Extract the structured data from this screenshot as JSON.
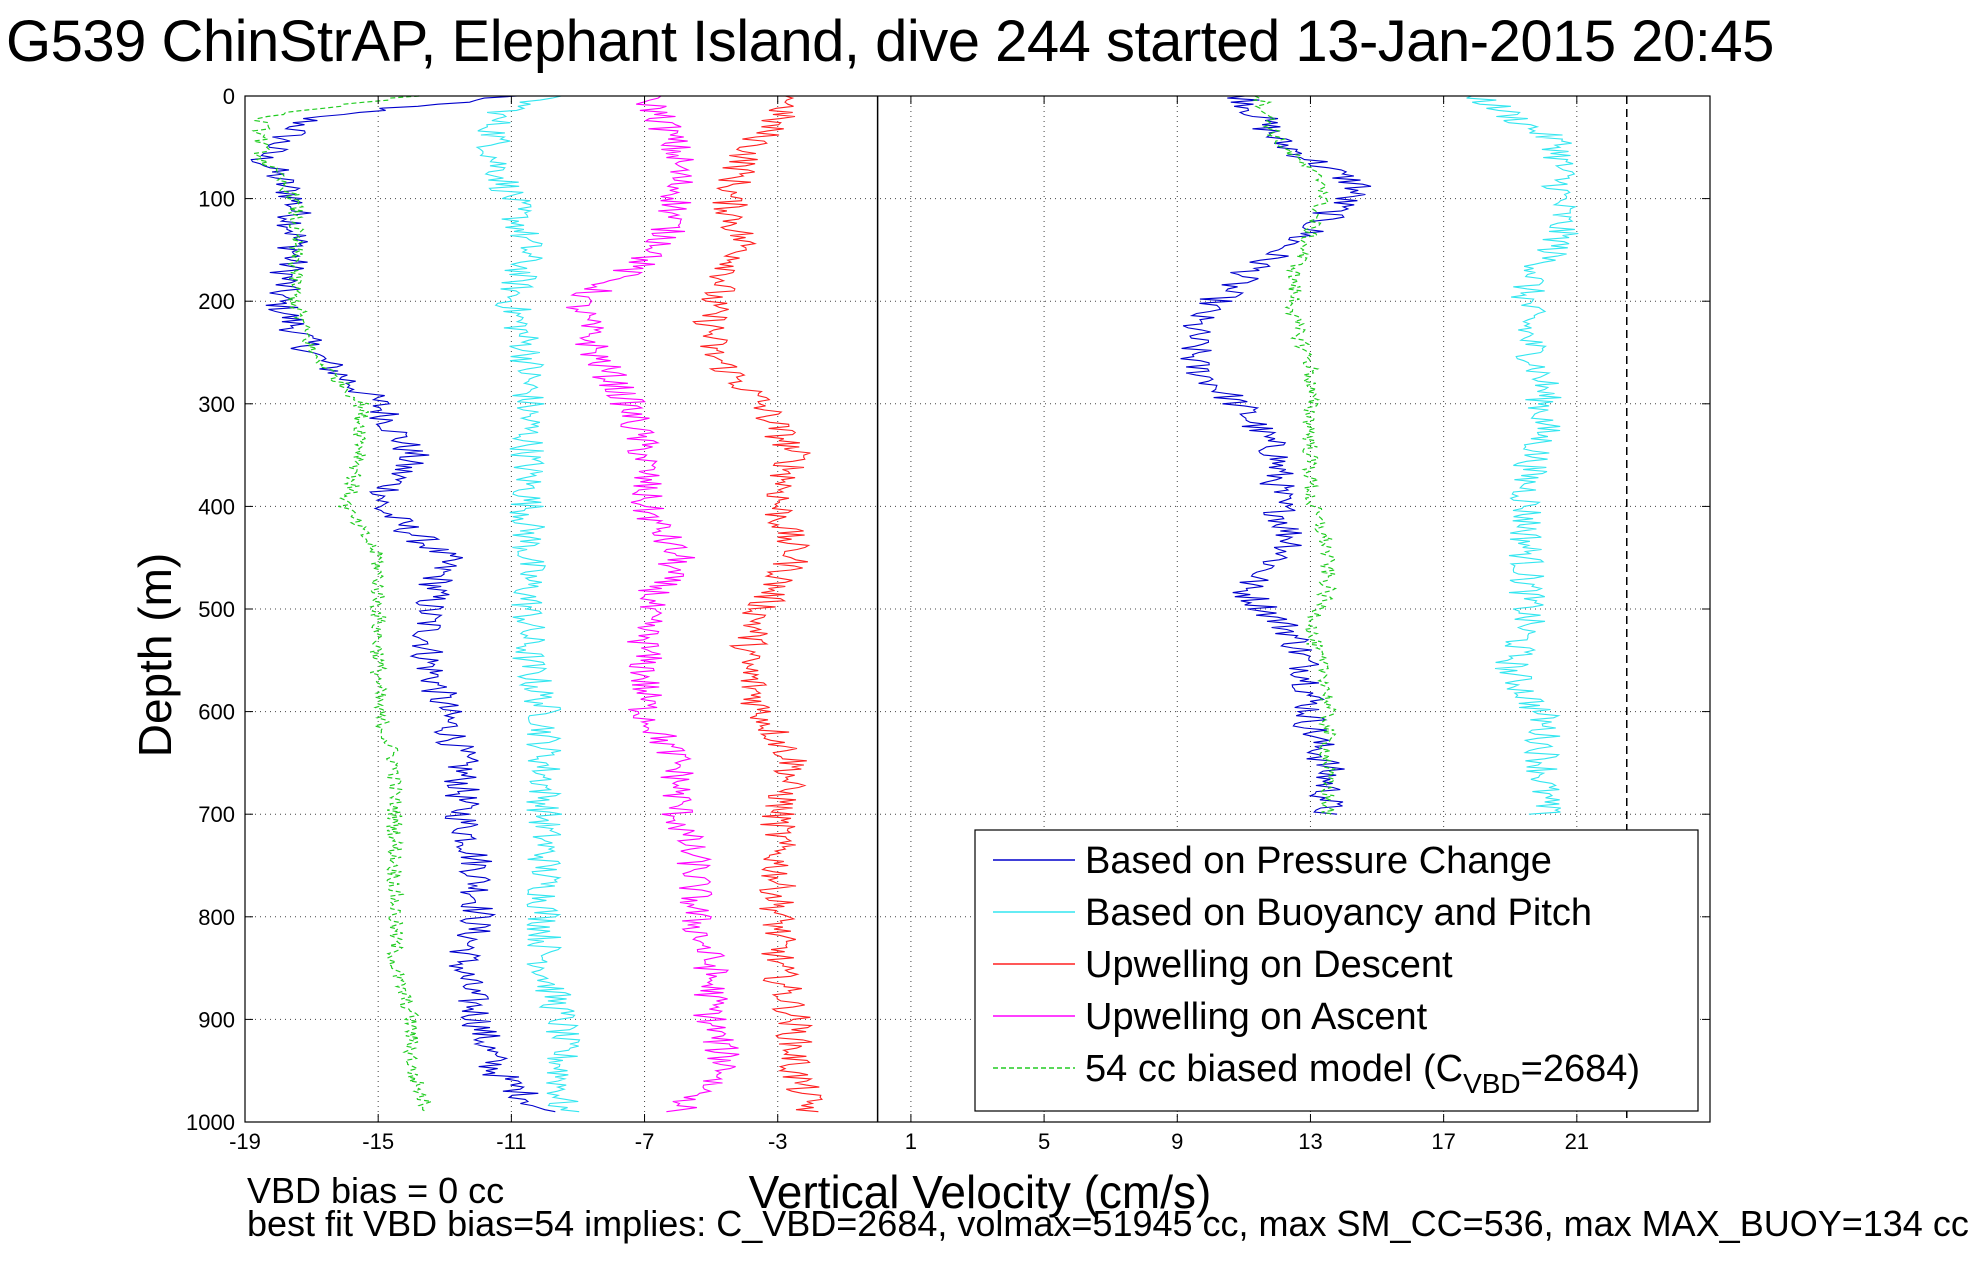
{
  "header": {
    "title": "G539 ChinStrAP, Elephant Island, dive 244 started 13-Jan-2015 20:45"
  },
  "footer": {
    "line1": "VBD bias = 0 cc",
    "line2": "best fit VBD bias=54 implies: C_VBD=2684, volmax=51945 cc, max SM_CC=536, max MAX_BUOY=134 cc"
  },
  "chart_data": {
    "type": "line",
    "title": "G539 ChinStrAP, Elephant Island, dive 244 started 13-Jan-2015 20:45",
    "xlabel": "Vertical Velocity (cm/s)",
    "ylabel": "Depth (m)",
    "xlim": [
      -19,
      25
    ],
    "ylim": [
      0,
      1000
    ],
    "y_reversed": true,
    "grid": true,
    "grid_style": "dotted",
    "legend_position": "bottom-right",
    "xticks": [
      -19,
      -15,
      -11,
      -7,
      -3,
      1,
      5,
      9,
      13,
      17,
      21
    ],
    "yticks": [
      0,
      100,
      200,
      300,
      400,
      500,
      600,
      700,
      800,
      900,
      1000
    ],
    "reference_lines": [
      {
        "x": 0,
        "style": "solid",
        "color": "#000000"
      },
      {
        "x": 22.5,
        "style": "dashed",
        "color": "#000000"
      }
    ],
    "series": [
      {
        "name": "Based on Pressure Change",
        "color": "#0000cc",
        "style": "solid",
        "depth": [
          0,
          20,
          60,
          100,
          150,
          200,
          250,
          300,
          350,
          400,
          450,
          500,
          550,
          600,
          650,
          700,
          750,
          800,
          850,
          900,
          950,
          990
        ],
        "descent": [
          -11,
          -17,
          -18.5,
          -17.5,
          -17.5,
          -18,
          -17,
          -15,
          -14,
          -15,
          -13,
          -13.5,
          -13.5,
          -13,
          -12.5,
          -12.5,
          -12,
          -12,
          -12.5,
          -12,
          -11.5,
          -10
        ],
        "ascent": [
          11,
          12,
          14.5,
          13,
          11,
          9.5,
          9.5,
          11,
          12,
          12,
          12.5,
          11,
          12.5,
          13,
          13,
          13.5,
          13.5
        ]
      },
      {
        "name": "Based on Buoyancy and Pitch",
        "color": "#33e6f0",
        "style": "solid",
        "depth": [
          0,
          20,
          60,
          100,
          150,
          200,
          250,
          300,
          350,
          400,
          450,
          500,
          550,
          600,
          650,
          700,
          750,
          800,
          850,
          900,
          950,
          990
        ],
        "descent": [
          -10,
          -11.5,
          -11.5,
          -11,
          -10.5,
          -11,
          -10.5,
          -10.5,
          -10.5,
          -10.5,
          -10.5,
          -10.5,
          -10.5,
          -10,
          -10,
          -10,
          -10,
          -10,
          -10,
          -9.5,
          -9.5,
          -9.5
        ],
        "ascent": [
          18,
          20.5,
          20.5,
          20.5,
          19.5,
          19.5,
          20,
          20,
          19.5,
          19.5,
          19.5,
          19.5,
          19,
          20,
          20,
          20
        ]
      },
      {
        "name": "Upwelling on Descent",
        "color": "#ff2020",
        "style": "solid",
        "depth": [
          0,
          20,
          60,
          100,
          150,
          200,
          250,
          300,
          350,
          400,
          450,
          500,
          550,
          600,
          650,
          700,
          750,
          800,
          850,
          900,
          950,
          990
        ],
        "values": [
          -2.5,
          -3,
          -4,
          -4.5,
          -4,
          -5,
          -5,
          -3.5,
          -2.5,
          -3,
          -2.5,
          -3.5,
          -4,
          -3.5,
          -2.5,
          -3,
          -3,
          -3,
          -3,
          -2.5,
          -2.5,
          -2
        ]
      },
      {
        "name": "Upwelling on Ascent",
        "color": "#ff00ff",
        "style": "solid",
        "depth": [
          0,
          20,
          60,
          100,
          150,
          200,
          250,
          300,
          350,
          400,
          450,
          500,
          550,
          600,
          650,
          700,
          750,
          800,
          850,
          900,
          950,
          990
        ],
        "values": [
          -7,
          -6.5,
          -6,
          -6,
          -6.5,
          -9,
          -8.5,
          -7.5,
          -7,
          -7,
          -6,
          -7,
          -7,
          -7,
          -6,
          -6,
          -5.5,
          -5.5,
          -5,
          -5,
          -4.5,
          -6
        ]
      },
      {
        "name": "54 cc biased model (C_VBD=2684)",
        "color": "#22cc22",
        "style": "dashed",
        "depth": [
          0,
          20,
          60,
          100,
          150,
          200,
          250,
          300,
          350,
          400,
          450,
          500,
          550,
          600,
          650,
          700,
          750,
          800,
          850,
          900,
          950,
          990
        ],
        "descent": [
          -14,
          -18.5,
          -18.5,
          -17.5,
          -17.5,
          -17.5,
          -17,
          -15.5,
          -15.5,
          -16,
          -15,
          -15,
          -15,
          -15,
          -14.5,
          -14.5,
          -14.5,
          -14.5,
          -14.5,
          -14,
          -14,
          -13.5
        ],
        "ascent": [
          11.5,
          12,
          13.5,
          13,
          12.5,
          12.5,
          13,
          13,
          13,
          13,
          13.5,
          13.5,
          13,
          13.5,
          13.5,
          13.5,
          13.5
        ]
      }
    ],
    "legend": [
      {
        "label": "Based on Pressure Change",
        "color": "#0000cc",
        "style": "solid"
      },
      {
        "label": "Based on Buoyancy and Pitch",
        "color": "#33e6f0",
        "style": "solid"
      },
      {
        "label": "Upwelling on Descent",
        "color": "#ff2020",
        "style": "solid"
      },
      {
        "label": "Upwelling on Ascent",
        "color": "#ff00ff",
        "style": "solid"
      },
      {
        "label": "54 cc biased model (C",
        "sub": "VBD",
        "suffix": "=2684)",
        "color": "#22cc22",
        "style": "dashed"
      }
    ]
  }
}
